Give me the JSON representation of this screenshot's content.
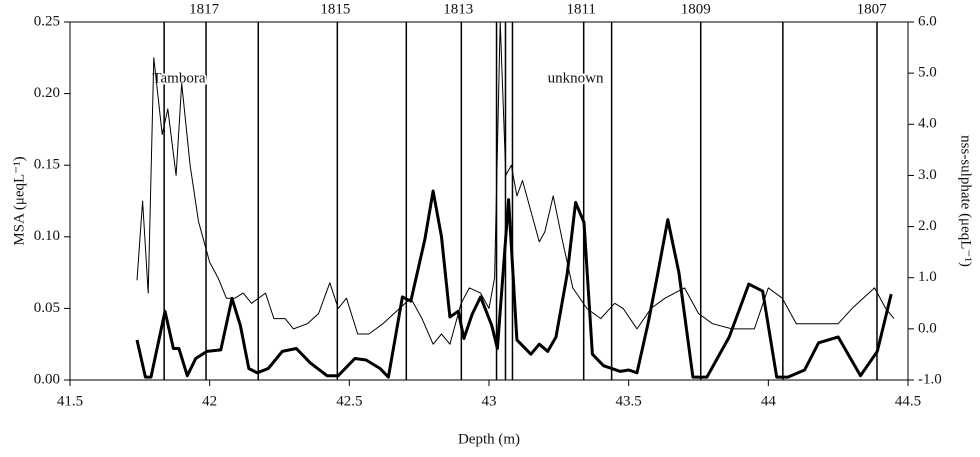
{
  "chart_data": {
    "type": "line",
    "xlabel": "Depth (m)",
    "ylabel": "MSA (μeqL⁻¹)",
    "y2label": "nss-sulphate (μeqL⁻¹)",
    "xlim": [
      41.5,
      44.5
    ],
    "xticks": [
      41.5,
      42,
      42.5,
      43,
      43.5,
      44,
      44.5
    ],
    "ylim": [
      0,
      0.25
    ],
    "yticks": [
      {
        "value": 0,
        "label": "0.00"
      },
      {
        "value": 0.05,
        "label": "0.05"
      },
      {
        "value": 0.1,
        "label": "0.10"
      },
      {
        "value": 0.15,
        "label": "0.15"
      },
      {
        "value": 0.2,
        "label": "0.20"
      },
      {
        "value": 0.25,
        "label": "0.25"
      }
    ],
    "y2lim": [
      -1,
      6
    ],
    "y2ticks": [
      {
        "value": -1,
        "label": "-1.0"
      },
      {
        "value": 0,
        "label": "0.0"
      },
      {
        "value": 1,
        "label": "1.0"
      },
      {
        "value": 2,
        "label": "2.0"
      },
      {
        "value": 3,
        "label": "3.0"
      },
      {
        "value": 4,
        "label": "4.0"
      },
      {
        "value": 5,
        "label": "5.0"
      },
      {
        "value": 6,
        "label": "6.0"
      }
    ],
    "markers": [
      41.837,
      41.987,
      42.174,
      42.457,
      42.704,
      42.901,
      43.027,
      43.059,
      43.084,
      43.339,
      43.439,
      43.758,
      44.052,
      44.389
    ],
    "year_labels": [
      {
        "text": "1817",
        "x": 41.98
      },
      {
        "text": "1815",
        "x": 42.45
      },
      {
        "text": "1813",
        "x": 42.89
      },
      {
        "text": "1811",
        "x": 43.33
      },
      {
        "text": "1809",
        "x": 43.74
      },
      {
        "text": "1807",
        "x": 44.37
      }
    ],
    "annotations": [
      {
        "text": "Tambora",
        "x": 41.89,
        "y": 0.21
      },
      {
        "text": "unknown",
        "x": 43.31,
        "y": 0.21
      }
    ],
    "series": [
      {
        "color": "#000000",
        "width": 3,
        "x": [
          41.74,
          41.77,
          41.79,
          41.84,
          41.87,
          41.89,
          41.92,
          41.95,
          41.99,
          42.04,
          42.08,
          42.11,
          42.14,
          42.17,
          42.21,
          42.26,
          42.31,
          42.36,
          42.42,
          42.46,
          42.52,
          42.56,
          42.61,
          42.64,
          42.69,
          42.72,
          42.77,
          42.8,
          42.83,
          42.86,
          42.89,
          42.91,
          42.94,
          42.97,
          43.01,
          43.03,
          43.07,
          43.1,
          43.15,
          43.18,
          43.21,
          43.24,
          43.28,
          43.31,
          43.34,
          43.37,
          43.41,
          43.47,
          43.5,
          43.53,
          43.57,
          43.6,
          43.64,
          43.68,
          43.73,
          43.78,
          43.86,
          43.93,
          43.98,
          44.03,
          44.07,
          44.13,
          44.18,
          44.25,
          44.33,
          44.39,
          44.44
        ],
        "values": [
          0.028,
          0.002,
          0.002,
          0.048,
          0.022,
          0.022,
          0.003,
          0.015,
          0.02,
          0.021,
          0.057,
          0.038,
          0.008,
          0.005,
          0.008,
          0.02,
          0.022,
          0.012,
          0.003,
          0.003,
          0.015,
          0.014,
          0.008,
          0.002,
          0.058,
          0.055,
          0.098,
          0.132,
          0.1,
          0.044,
          0.048,
          0.029,
          0.046,
          0.058,
          0.038,
          0.022,
          0.126,
          0.028,
          0.018,
          0.025,
          0.02,
          0.03,
          0.074,
          0.124,
          0.11,
          0.018,
          0.01,
          0.006,
          0.007,
          0.005,
          0.04,
          0.07,
          0.112,
          0.075,
          0.002,
          0.002,
          0.03,
          0.067,
          0.062,
          0.002,
          0.002,
          0.007,
          0.026,
          0.03,
          0.003,
          0.02,
          0.06
        ]
      },
      {
        "color": "#000000",
        "width": 1,
        "axis": "y2",
        "x": [
          41.74,
          41.76,
          41.78,
          41.8,
          41.83,
          41.85,
          41.88,
          41.9,
          41.93,
          41.96,
          42.0,
          42.03,
          42.06,
          42.09,
          42.12,
          42.15,
          42.2,
          42.23,
          42.27,
          42.3,
          42.35,
          42.39,
          42.43,
          42.46,
          42.49,
          42.53,
          42.57,
          42.62,
          42.68,
          42.72,
          42.76,
          42.8,
          42.83,
          42.86,
          42.9,
          42.93,
          42.97,
          43.0,
          43.02,
          43.04,
          43.06,
          43.08,
          43.1,
          43.12,
          43.15,
          43.18,
          43.2,
          43.23,
          43.26,
          43.3,
          43.35,
          43.4,
          43.45,
          43.48,
          43.53,
          43.58,
          43.63,
          43.7,
          43.75,
          43.8,
          43.87,
          43.95,
          44.0,
          44.05,
          44.1,
          44.18,
          44.25,
          44.3,
          44.38,
          44.42,
          44.45
        ],
        "values": [
          0.95,
          2.5,
          0.7,
          5.3,
          3.8,
          4.3,
          3.0,
          4.8,
          3.2,
          2.1,
          1.3,
          1.0,
          0.6,
          0.6,
          0.7,
          0.5,
          0.7,
          0.2,
          0.2,
          0.0,
          0.1,
          0.3,
          0.9,
          0.4,
          0.6,
          -0.1,
          -0.1,
          0.1,
          0.4,
          0.6,
          0.2,
          -0.3,
          -0.1,
          -0.3,
          0.5,
          0.8,
          0.7,
          0.4,
          1.0,
          6.0,
          3.0,
          3.2,
          2.6,
          2.9,
          2.3,
          1.7,
          1.9,
          2.6,
          1.8,
          0.8,
          0.4,
          0.2,
          0.5,
          0.4,
          0.0,
          0.4,
          0.6,
          0.8,
          0.3,
          0.1,
          0.0,
          0.0,
          0.8,
          0.6,
          0.1,
          0.1,
          0.1,
          0.4,
          0.8,
          0.4,
          0.2
        ]
      }
    ]
  }
}
